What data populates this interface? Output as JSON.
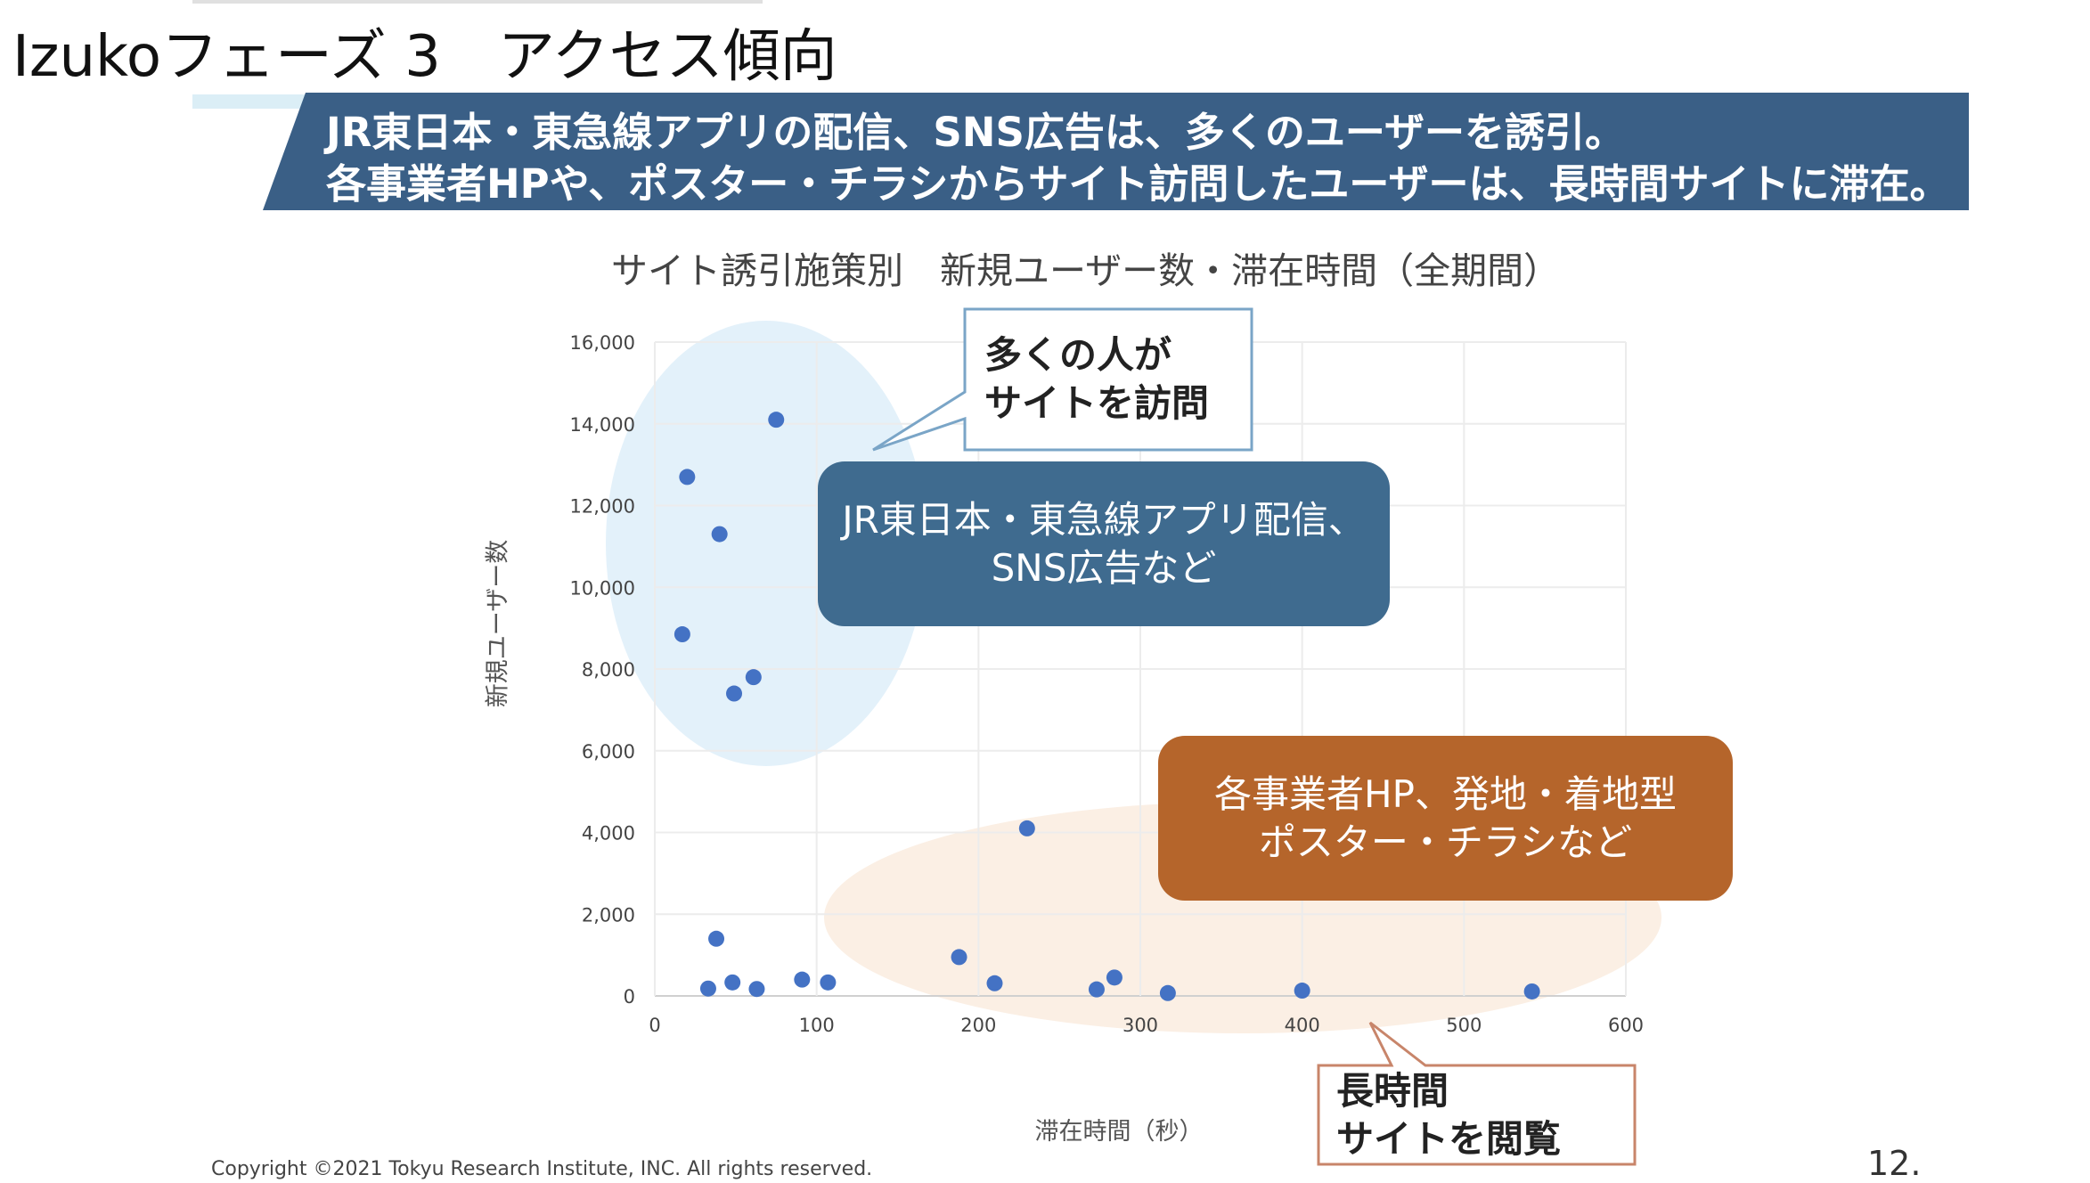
{
  "slide": {
    "title": "Izukoフェーズ 3　アクセス傾向",
    "banner_line1": "JR東日本・東急線アプリの配信、SNS広告は、多くのユーザーを誘引。",
    "banner_line2": "各事業者HPや、ポスター・チラシからサイト訪問したユーザーは、長時間サイトに滞在。",
    "copyright": "Copyright ©2021 Tokyu Research Institute, INC. All rights reserved.",
    "page_number": "12."
  },
  "callouts": {
    "top_line1": "多くの人が",
    "top_line2": "サイトを訪問",
    "bottom_line1": "長時間",
    "bottom_line2": "サイトを閲覧"
  },
  "groups": {
    "blue_line1": "JR東日本・東急線アプリ配信、",
    "blue_line2": "SNS広告など",
    "orange_line1": "各事業者HP、発地・着地型",
    "orange_line2": "ポスター・チラシなど"
  },
  "colors": {
    "banner": "#3a5f86",
    "point": "#4472c4",
    "blue_box": "#3f6b8f",
    "orange_box": "#b5652b",
    "blue_ellipse": "#e3f1fa",
    "orange_ellipse": "#fbefe4"
  },
  "chart_data": {
    "type": "scatter",
    "title": "サイト誘引施策別　新規ユーザー数・滞在時間（全期間）",
    "xlabel": "滞在時間（秒）",
    "ylabel": "新規ユーザー数",
    "xlim": [
      0,
      600
    ],
    "ylim": [
      0,
      16000
    ],
    "xticks": [
      0,
      100,
      200,
      300,
      400,
      500,
      600
    ],
    "yticks": [
      0,
      2000,
      4000,
      6000,
      8000,
      10000,
      12000,
      14000,
      16000
    ],
    "ytick_labels": [
      "0",
      "2,000",
      "4,000",
      "6,000",
      "8,000",
      "10,000",
      "12,000",
      "14,000",
      "16,000"
    ],
    "grid": true,
    "points": [
      {
        "x": 75,
        "y": 14100
      },
      {
        "x": 20,
        "y": 12700
      },
      {
        "x": 40,
        "y": 11300
      },
      {
        "x": 17,
        "y": 8850
      },
      {
        "x": 61,
        "y": 7800
      },
      {
        "x": 49,
        "y": 7400
      },
      {
        "x": 230,
        "y": 4100
      },
      {
        "x": 38,
        "y": 1400
      },
      {
        "x": 188,
        "y": 950
      },
      {
        "x": 284,
        "y": 450
      },
      {
        "x": 91,
        "y": 400
      },
      {
        "x": 48,
        "y": 330
      },
      {
        "x": 107,
        "y": 330
      },
      {
        "x": 210,
        "y": 310
      },
      {
        "x": 33,
        "y": 180
      },
      {
        "x": 63,
        "y": 170
      },
      {
        "x": 273,
        "y": 160
      },
      {
        "x": 317,
        "y": 70
      },
      {
        "x": 400,
        "y": 130
      },
      {
        "x": 542,
        "y": 110
      }
    ]
  }
}
